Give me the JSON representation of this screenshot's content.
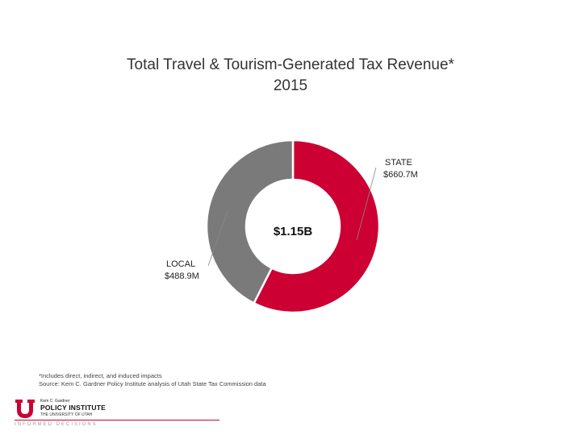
{
  "header": {
    "title_line1": "Total Travel & Tourism-Generated Tax Revenue*",
    "title_line2": "2015"
  },
  "chart_data": {
    "type": "pie",
    "variant": "donut",
    "center_label": "$1.15B",
    "slices": [
      {
        "name": "STATE",
        "label": "STATE",
        "value_label": "$660.7M",
        "value": 660.7,
        "unit": "M",
        "color": "#cc0033"
      },
      {
        "name": "LOCAL",
        "label": "LOCAL",
        "value_label": "$488.9M",
        "value": 488.9,
        "unit": "M",
        "color": "#7a7a7a"
      }
    ]
  },
  "footnote": {
    "line1": "*Includes direct, indirect, and induced impacts",
    "line2": "Source: Kem C. Gardner Policy Institute analysis of Utah State Tax Commission data"
  },
  "logo": {
    "small_name": "Kem C. Gardner",
    "institute": "POLICY INSTITUTE",
    "university": "THE UNIVERSITY OF UTAH",
    "tagline": "INFORMED DECISIONS",
    "brand_color": "#cc0033"
  }
}
